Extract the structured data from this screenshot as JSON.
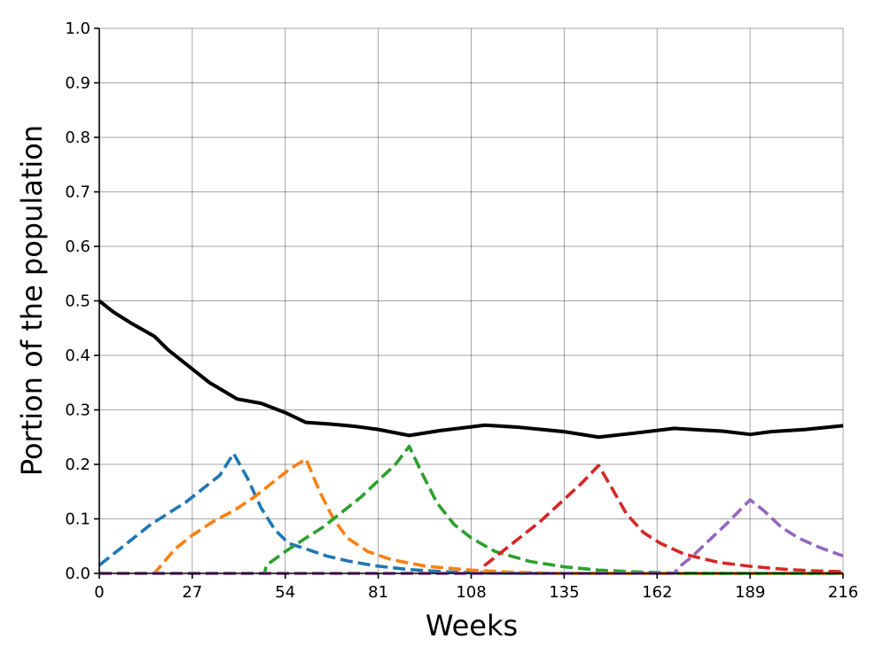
{
  "chart_data": {
    "type": "line",
    "title": "",
    "xlabel": "Weeks",
    "ylabel": "Portion of the population",
    "xlim": [
      0,
      216
    ],
    "ylim": [
      0,
      1.0
    ],
    "x_ticks": [
      "0",
      "27",
      "54",
      "81",
      "108",
      "135",
      "162",
      "189",
      "216"
    ],
    "x_tick_values": [
      0,
      27,
      54,
      81,
      108,
      135,
      162,
      189,
      216
    ],
    "y_ticks": [
      "0.0",
      "0.1",
      "0.2",
      "0.3",
      "0.4",
      "0.5",
      "0.6",
      "0.7",
      "0.8",
      "0.9",
      "1.0"
    ],
    "y_tick_values": [
      0.0,
      0.1,
      0.2,
      0.3,
      0.4,
      0.5,
      0.6,
      0.7,
      0.8,
      0.9,
      1.0
    ],
    "grid": true,
    "legend": "none",
    "series": [
      {
        "color": "#000000",
        "style": "solid",
        "points": [
          [
            0,
            0.5
          ],
          [
            4,
            0.48
          ],
          [
            9,
            0.46
          ],
          [
            16,
            0.435
          ],
          [
            20,
            0.41
          ],
          [
            26,
            0.38
          ],
          [
            32,
            0.35
          ],
          [
            40,
            0.32
          ],
          [
            47,
            0.312
          ],
          [
            54,
            0.295
          ],
          [
            60,
            0.277
          ],
          [
            67,
            0.274
          ],
          [
            74,
            0.27
          ],
          [
            81,
            0.264
          ],
          [
            90,
            0.253
          ],
          [
            99,
            0.262
          ],
          [
            112,
            0.272
          ],
          [
            122,
            0.268
          ],
          [
            135,
            0.26
          ],
          [
            145,
            0.25
          ],
          [
            155,
            0.257
          ],
          [
            167,
            0.266
          ],
          [
            175,
            0.263
          ],
          [
            181,
            0.261
          ],
          [
            189,
            0.255
          ],
          [
            195,
            0.26
          ],
          [
            205,
            0.264
          ],
          [
            216,
            0.271
          ]
        ]
      },
      {
        "color": "#1f77b4",
        "style": "dashed",
        "points": [
          [
            0,
            0.015
          ],
          [
            5,
            0.04
          ],
          [
            10,
            0.065
          ],
          [
            15,
            0.09
          ],
          [
            20,
            0.11
          ],
          [
            25,
            0.13
          ],
          [
            30,
            0.155
          ],
          [
            35,
            0.18
          ],
          [
            39,
            0.22
          ],
          [
            43,
            0.175
          ],
          [
            47,
            0.12
          ],
          [
            51,
            0.08
          ],
          [
            55,
            0.055
          ],
          [
            60,
            0.045
          ],
          [
            66,
            0.032
          ],
          [
            72,
            0.023
          ],
          [
            80,
            0.014
          ],
          [
            90,
            0.007
          ],
          [
            100,
            0.003
          ],
          [
            110,
            0.001
          ],
          [
            120,
            0.0
          ],
          [
            216,
            0.0
          ]
        ]
      },
      {
        "color": "#ff7f0e",
        "style": "dashed",
        "points": [
          [
            0,
            0.0
          ],
          [
            16,
            0.0
          ],
          [
            18,
            0.015
          ],
          [
            22,
            0.045
          ],
          [
            27,
            0.07
          ],
          [
            33,
            0.095
          ],
          [
            39,
            0.115
          ],
          [
            45,
            0.14
          ],
          [
            50,
            0.165
          ],
          [
            55,
            0.19
          ],
          [
            60,
            0.21
          ],
          [
            64,
            0.15
          ],
          [
            68,
            0.1
          ],
          [
            72,
            0.065
          ],
          [
            78,
            0.04
          ],
          [
            85,
            0.025
          ],
          [
            95,
            0.013
          ],
          [
            108,
            0.006
          ],
          [
            120,
            0.002
          ],
          [
            135,
            0.0
          ],
          [
            216,
            0.0
          ]
        ]
      },
      {
        "color": "#2ca02c",
        "style": "dashed",
        "points": [
          [
            0,
            0.0
          ],
          [
            48,
            0.0
          ],
          [
            48.5,
            0.015
          ],
          [
            54,
            0.04
          ],
          [
            60,
            0.065
          ],
          [
            65,
            0.085
          ],
          [
            70,
            0.11
          ],
          [
            76,
            0.14
          ],
          [
            81,
            0.17
          ],
          [
            86,
            0.2
          ],
          [
            90,
            0.233
          ],
          [
            94,
            0.18
          ],
          [
            98,
            0.13
          ],
          [
            103,
            0.09
          ],
          [
            108,
            0.065
          ],
          [
            115,
            0.04
          ],
          [
            125,
            0.022
          ],
          [
            135,
            0.012
          ],
          [
            145,
            0.006
          ],
          [
            155,
            0.003
          ],
          [
            165,
            0.001
          ],
          [
            175,
            0.0
          ],
          [
            216,
            0.0
          ]
        ]
      },
      {
        "color": "#d62728",
        "style": "dashed",
        "points": [
          [
            0,
            0.0
          ],
          [
            111,
            0.0
          ],
          [
            112,
            0.015
          ],
          [
            117,
            0.04
          ],
          [
            122,
            0.065
          ],
          [
            128,
            0.095
          ],
          [
            134,
            0.13
          ],
          [
            140,
            0.165
          ],
          [
            145,
            0.198
          ],
          [
            149,
            0.155
          ],
          [
            153,
            0.11
          ],
          [
            158,
            0.075
          ],
          [
            163,
            0.055
          ],
          [
            170,
            0.035
          ],
          [
            180,
            0.02
          ],
          [
            189,
            0.013
          ],
          [
            198,
            0.008
          ],
          [
            206,
            0.005
          ],
          [
            216,
            0.003
          ]
        ]
      },
      {
        "color": "#9467bd",
        "style": "dashed",
        "points": [
          [
            0,
            0.0
          ],
          [
            167,
            0.0
          ],
          [
            168,
            0.01
          ],
          [
            172,
            0.03
          ],
          [
            177,
            0.06
          ],
          [
            182,
            0.09
          ],
          [
            189,
            0.135
          ],
          [
            193,
            0.115
          ],
          [
            198,
            0.085
          ],
          [
            203,
            0.065
          ],
          [
            209,
            0.048
          ],
          [
            216,
            0.032
          ]
        ]
      }
    ]
  }
}
